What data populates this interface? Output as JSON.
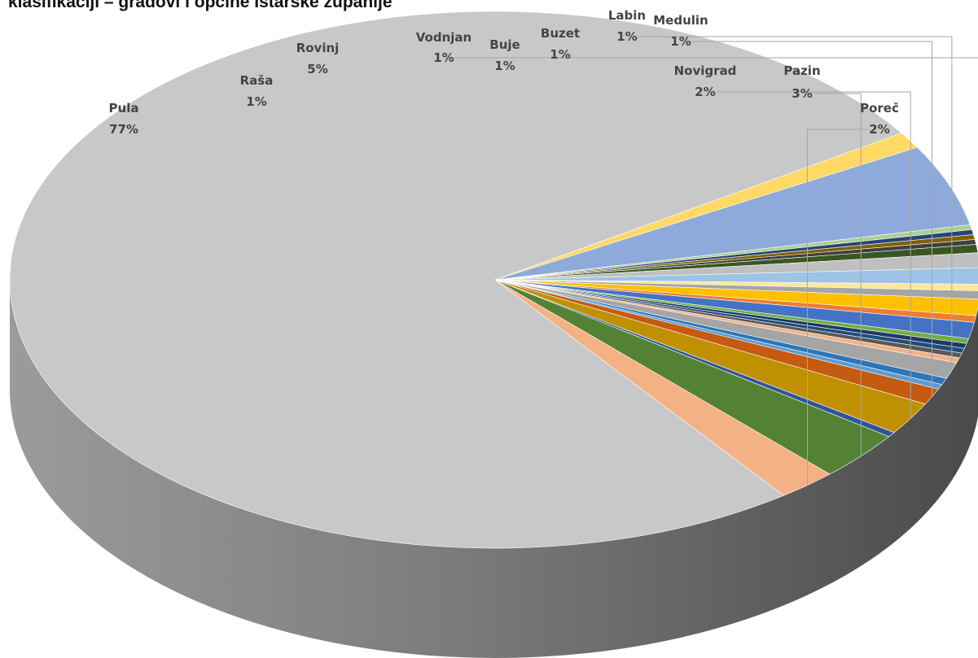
{
  "chart_data": {
    "type": "pie",
    "subtype": "3d",
    "title": "klasifikaciji – gradovi i općine Istarske županije",
    "slices": [
      {
        "name": "Pula",
        "value": 77,
        "label": "77%",
        "color": "#c8c8c8"
      },
      {
        "name": "Raša",
        "value": 1,
        "label": "1%",
        "color": "#ffd966"
      },
      {
        "name": "Rovinj",
        "value": 5,
        "label": "5%",
        "color": "#8eaadb"
      },
      {
        "name": "",
        "value": 0.3,
        "color": "#a9d18e"
      },
      {
        "name": "",
        "value": 0.3,
        "color": "#264478"
      },
      {
        "name": "",
        "value": 0.3,
        "color": "#7f6000"
      },
      {
        "name": "",
        "value": 0.3,
        "color": "#404040"
      },
      {
        "name": "",
        "value": 0.5,
        "color": "#385723"
      },
      {
        "name": "",
        "value": 0.9,
        "color": "#bfbfbf"
      },
      {
        "name": "Vodnjan",
        "value": 1,
        "label": "1%",
        "color": "#9dc3e6"
      },
      {
        "name": "",
        "value": 0.4,
        "color": "#ffe699"
      },
      {
        "name": "",
        "value": 0.5,
        "color": "#a5a5a5"
      },
      {
        "name": "Buje",
        "value": 1,
        "label": "1%",
        "color": "#ffc000"
      },
      {
        "name": "",
        "value": 0.4,
        "color": "#ed7d31"
      },
      {
        "name": "Buzet",
        "value": 1,
        "label": "1%",
        "color": "#4472c4"
      },
      {
        "name": "",
        "value": 0.3,
        "color": "#70ad47"
      },
      {
        "name": "",
        "value": 0.3,
        "color": "#203864"
      },
      {
        "name": "",
        "value": 0.3,
        "color": "#1f4e79"
      },
      {
        "name": "",
        "value": 0.3,
        "color": "#595959"
      },
      {
        "name": "",
        "value": 0.3,
        "color": "#f4b183"
      },
      {
        "name": "Labin",
        "value": 1,
        "label": "1%",
        "color": "#a5a5a5"
      },
      {
        "name": "",
        "value": 0.4,
        "color": "#2e75b6"
      },
      {
        "name": "",
        "value": 0.3,
        "color": "#5b9bd5"
      },
      {
        "name": "Medulin",
        "value": 1,
        "label": "1%",
        "color": "#c55a11"
      },
      {
        "name": "Novigrad",
        "value": 2,
        "label": "2%",
        "color": "#bf9000"
      },
      {
        "name": "",
        "value": 0.3,
        "color": "#2f5597"
      },
      {
        "name": "Pazin",
        "value": 3,
        "label": "3%",
        "color": "#548235"
      },
      {
        "name": "Poreč",
        "value": 2,
        "label": "2%",
        "color": "#f4b183"
      }
    ],
    "labels": [
      {
        "name": "Pula",
        "pct": "77%"
      },
      {
        "name": "Raša",
        "pct": "1%"
      },
      {
        "name": "Rovinj",
        "pct": "5%"
      },
      {
        "name": "Vodnjan",
        "pct": "1%"
      },
      {
        "name": "Buje",
        "pct": "1%"
      },
      {
        "name": "Buzet",
        "pct": "1%"
      },
      {
        "name": "Labin",
        "pct": "1%"
      },
      {
        "name": "Medulin",
        "pct": "1%"
      },
      {
        "name": "Novigrad",
        "pct": "2%"
      },
      {
        "name": "Pazin",
        "pct": "3%"
      },
      {
        "name": "Poreč",
        "pct": "2%"
      }
    ]
  }
}
